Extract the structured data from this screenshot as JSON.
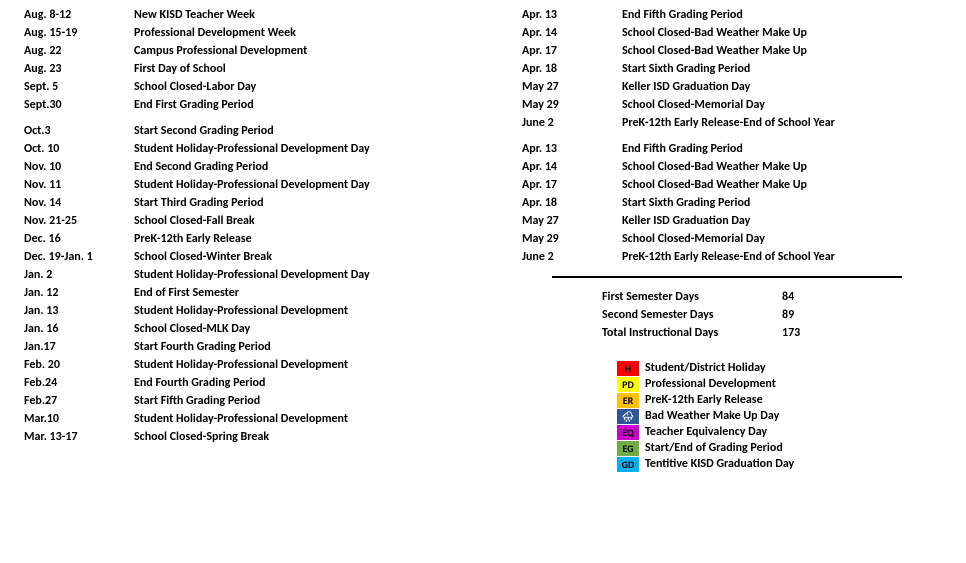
{
  "left_blocks": [
    [
      {
        "date": "Aug. 8-12",
        "desc": "New KISD Teacher Week"
      },
      {
        "date": "Aug. 15-19",
        "desc": "Professional Development Week"
      },
      {
        "date": "Aug. 22",
        "desc": "Campus Professional Development"
      },
      {
        "date": "Aug. 23",
        "desc": "First Day of School"
      },
      {
        "date": "Sept. 5",
        "desc": "School Closed-Labor Day"
      },
      {
        "date": "Sept.30",
        "desc": "End First Grading Period"
      }
    ],
    [
      {
        "date": "Oct.3",
        "desc": "Start Second Grading Period"
      },
      {
        "date": "Oct. 10",
        "desc": "Student Holiday-Professional Development Day"
      },
      {
        "date": "Nov. 10",
        "desc": "End Second Grading Period"
      },
      {
        "date": "Nov. 11",
        "desc": "Student Holiday-Professional Development Day"
      },
      {
        "date": "Nov. 14",
        "desc": "Start Third Grading Period"
      },
      {
        "date": "Nov. 21-25",
        "desc": "School Closed-Fall Break"
      },
      {
        "date": "Dec. 16",
        "desc": "PreK-12th Early Release"
      },
      {
        "date": "Dec. 19-Jan. 1",
        "desc": "School Closed-Winter Break"
      },
      {
        "date": "Jan. 2",
        "desc": "Student Holiday-Professional Development Day"
      },
      {
        "date": "Jan. 12",
        "desc": "End of First Semester"
      },
      {
        "date": "Jan. 13",
        "desc": "Student Holiday-Professional Development"
      },
      {
        "date": "Jan. 16",
        "desc": "School Closed-MLK Day"
      },
      {
        "date": "Jan.17",
        "desc": "Start Fourth Grading Period"
      },
      {
        "date": "Feb. 20",
        "desc": "Student Holiday-Professional Development"
      },
      {
        "date": "Feb.24",
        "desc": "End Fourth Grading Period"
      },
      {
        "date": "Feb.27",
        "desc": "Start Fifth Grading Period"
      },
      {
        "date": "Mar.10",
        "desc": "Student Holiday-Professional Development"
      },
      {
        "date": "Mar. 13-17",
        "desc": "School Closed-Spring Break"
      }
    ]
  ],
  "right_blocks": [
    [
      {
        "date": "Apr. 13",
        "desc": "End Fifth Grading Period"
      },
      {
        "date": "Apr. 14",
        "desc": "School Closed-Bad Weather Make Up"
      },
      {
        "date": "Apr. 17",
        "desc": "School Closed-Bad Weather Make Up"
      },
      {
        "date": "Apr. 18",
        "desc": "Start Sixth Grading Period"
      },
      {
        "date": "May 27",
        "desc": "Keller ISD Graduation Day"
      },
      {
        "date": "May 29",
        "desc": "School Closed-Memorial Day"
      },
      {
        "date": "June 2",
        "desc": "PreK-12th Early Release-End of School Year"
      }
    ],
    [
      {
        "date": "Apr. 13",
        "desc": "End Fifth Grading Period"
      },
      {
        "date": "Apr. 14",
        "desc": "School Closed-Bad Weather Make Up"
      },
      {
        "date": "Apr. 17",
        "desc": "School Closed-Bad Weather Make Up"
      },
      {
        "date": "Apr. 18",
        "desc": "Start Sixth Grading Period"
      },
      {
        "date": "May 27",
        "desc": "Keller ISD Graduation Day"
      },
      {
        "date": "May 29",
        "desc": "School Closed-Memorial Day"
      },
      {
        "date": "June 2",
        "desc": "PreK-12th Early Release-End of School Year"
      }
    ]
  ],
  "summary": [
    {
      "label": "First Semester Days",
      "value": "84"
    },
    {
      "label": "Second Semester Days",
      "value": "89"
    },
    {
      "label": "Total Instructional Days",
      "value": "173"
    }
  ],
  "legend": [
    {
      "code": "H",
      "label": "Student/District Holiday",
      "bg": "#ff0000",
      "fg": "#000000"
    },
    {
      "code": "PD",
      "label": "Professional Development",
      "bg": "#ffff00",
      "fg": "#000000"
    },
    {
      "code": "ER",
      "label": "PreK-12th Early Release",
      "bg": "#ffc000",
      "fg": "#000000"
    },
    {
      "code": "🌧",
      "label": "Bad Weather Make Up Day",
      "bg": "#305496",
      "fg": "#ffffff"
    },
    {
      "code": "EQ",
      "label": "Teacher Equivalency Day",
      "bg": "#cc00cc",
      "fg": "#000000"
    },
    {
      "code": "EG",
      "label": "Start/End of Grading Period",
      "bg": "#70ad47",
      "fg": "#000000"
    },
    {
      "code": "GD",
      "label": "Tentitive KISD Graduation Day",
      "bg": "#00b0f0",
      "fg": "#000000"
    }
  ]
}
